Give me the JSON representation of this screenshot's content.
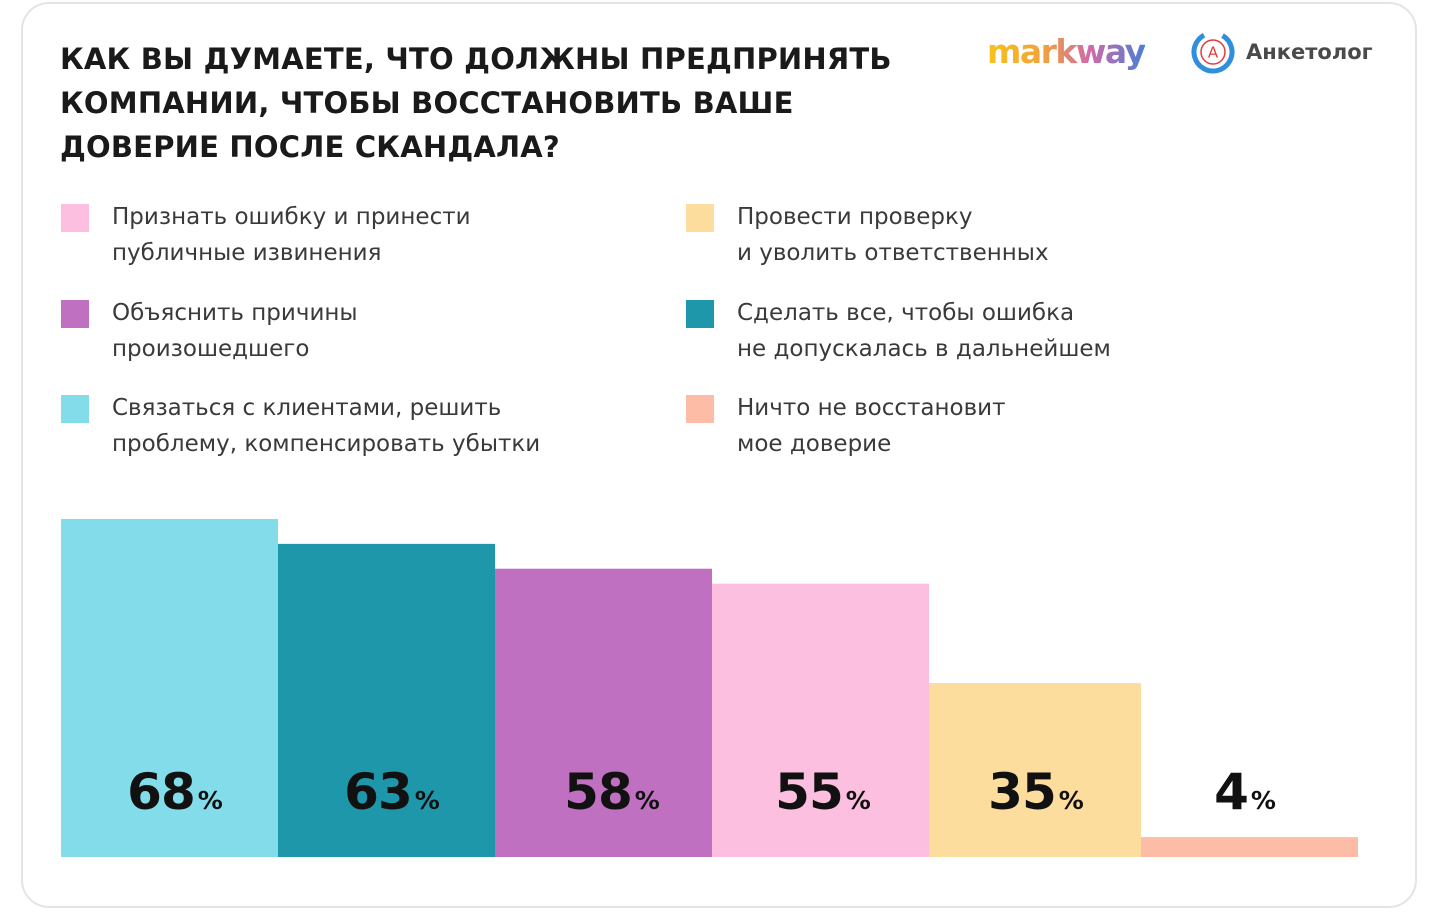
{
  "title": {
    "line1": "КАК ВЫ ДУМАЕТЕ, ЧТО ДОЛЖНЫ ПРЕДПРИНЯТЬ",
    "line2": "КОМПАНИИ, ЧТОБЫ ВОССТАНОВИТЬ ВАШЕ",
    "line3": "ДОВЕРИЕ ПОСЛЕ СКАНДАЛА?"
  },
  "logos": {
    "markway": "markway",
    "anketolog": "Анкетолог",
    "anketolog_mark": "A"
  },
  "colors": {
    "pink": "#fdbfe0",
    "yellow": "#fddd9e",
    "purple": "#c070c0",
    "teal": "#1f97aa",
    "cyan": "#82dcea",
    "salmon": "#fdbca6"
  },
  "legend": [
    {
      "line1": "Признать ошибку и принести",
      "line2": "публичные извинения",
      "color": "#fdbfe0"
    },
    {
      "line1": "Провести проверку",
      "line2": "и уволить ответственных",
      "color": "#fddd9e"
    },
    {
      "line1": "Объяснить причины",
      "line2": "произошедшего",
      "color": "#c070c0"
    },
    {
      "line1": "Сделать все, чтобы ошибка",
      "line2": "не допускалась в дальнейшем",
      "color": "#1f97aa"
    },
    {
      "line1": "Связаться с клиентами, решить",
      "line2": "проблему, компенсировать убытки",
      "color": "#82dcea"
    },
    {
      "line1": "Ничто не восстановит",
      "line2": "мое доверие",
      "color": "#fdbca6"
    }
  ],
  "chart_data": {
    "type": "bar",
    "title": "КАК ВЫ ДУМАЕТЕ, ЧТО ДОЛЖНЫ ПРЕДПРИНЯТЬ КОМПАНИИ, ЧТОБЫ ВОССТАНОВИТЬ ВАШЕ ДОВЕРИЕ ПОСЛЕ СКАНДАЛА?",
    "categories": [
      "Связаться с клиентами, решить проблему, компенсировать убытки",
      "Сделать все, чтобы ошибка не допускалась в дальнейшем",
      "Объяснить причины произошедшего",
      "Признать ошибку и принести публичные извинения",
      "Провести проверку и уволить ответственных",
      "Ничто не восстановит мое доверие"
    ],
    "values": [
      68,
      63,
      58,
      55,
      35,
      4
    ],
    "colors": [
      "#82dcea",
      "#1f97aa",
      "#c070c0",
      "#fdbfe0",
      "#fddd9e",
      "#fdbca6"
    ],
    "unit": "%",
    "ylim": [
      0,
      68
    ],
    "grid": false,
    "legend_position": "top"
  }
}
